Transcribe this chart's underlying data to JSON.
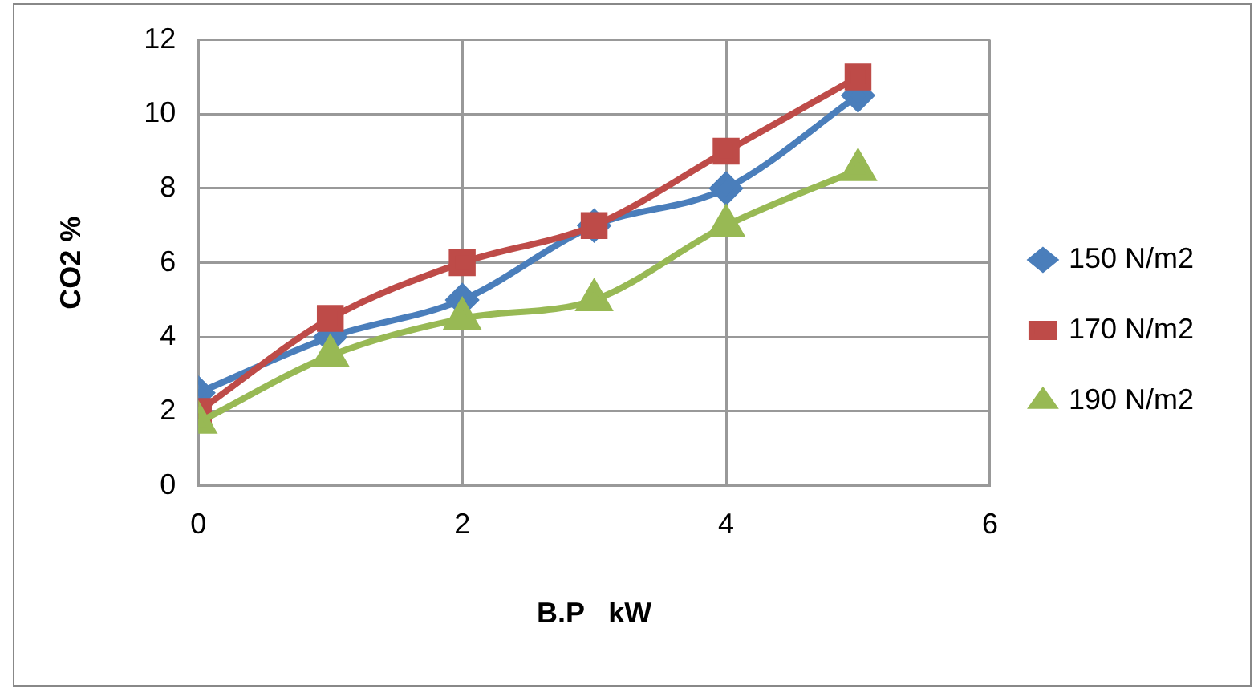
{
  "chart_data": {
    "type": "line",
    "xlabel": "B.P   kW",
    "ylabel": "CO2 %",
    "x": [
      0,
      1,
      2,
      3,
      4,
      5
    ],
    "series": [
      {
        "name": "150 N/m2",
        "color": "#4a7ebb",
        "marker": "diamond",
        "values": [
          2.5,
          4,
          5,
          7,
          8,
          10.5
        ]
      },
      {
        "name": "170 N/m2",
        "color": "#be4b48",
        "marker": "square",
        "values": [
          2,
          4.5,
          6,
          7,
          9,
          11
        ]
      },
      {
        "name": "190 N/m2",
        "color": "#98b954",
        "marker": "triangle",
        "values": [
          1.7,
          3.5,
          4.5,
          5,
          7,
          8.5
        ]
      }
    ],
    "xlim": [
      0,
      6
    ],
    "xticks": [
      0,
      2,
      4,
      6
    ],
    "ylim": [
      0,
      12
    ],
    "yticks": [
      0,
      2,
      4,
      6,
      8,
      10,
      12
    ],
    "grid": true,
    "legend": "right"
  }
}
